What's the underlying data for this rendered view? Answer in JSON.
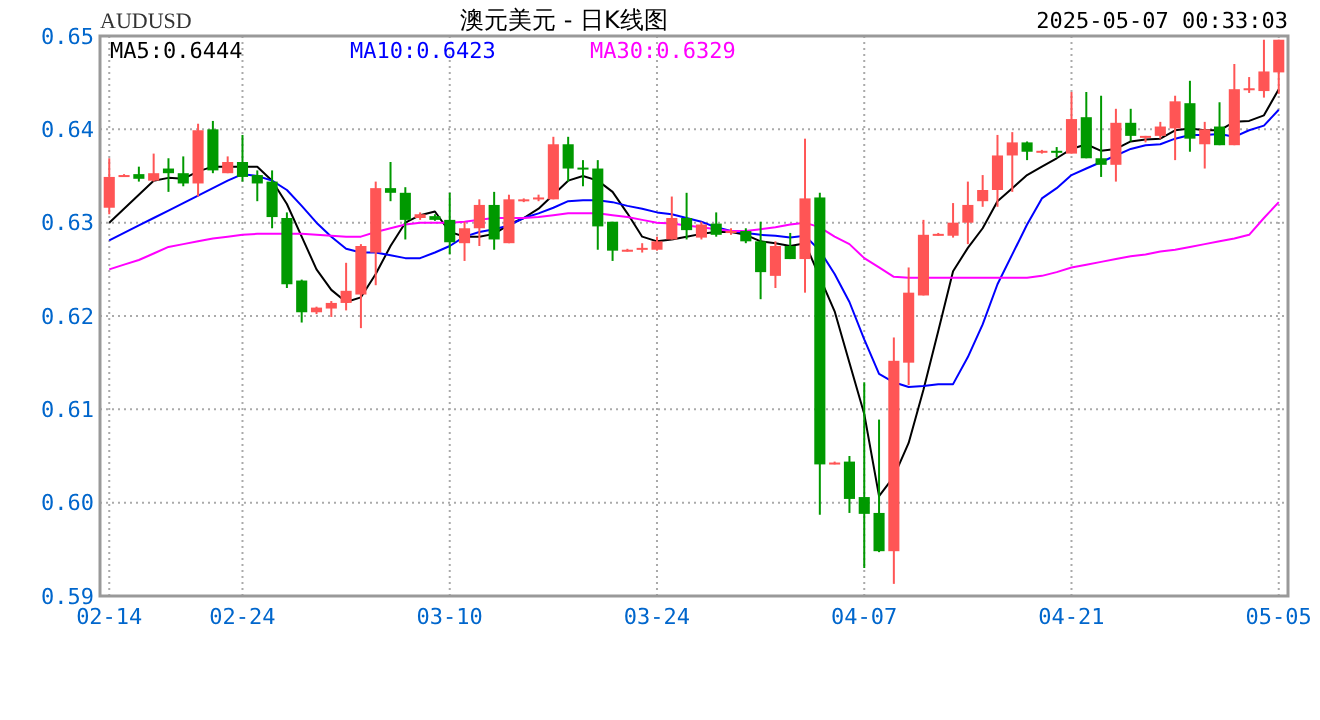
{
  "chart_data": {
    "type": "candlestick",
    "title": "澳元美元 - 日K线图",
    "ylabel": "AUDUSD",
    "annotations": [
      "2025-05-07 00:33:03"
    ],
    "categories": [
      "02-14",
      null,
      null,
      null,
      null,
      null,
      null,
      null,
      null,
      "02-24",
      null,
      null,
      null,
      null,
      null,
      null,
      null,
      null,
      null,
      null,
      null,
      null,
      null,
      "03-10",
      null,
      null,
      null,
      null,
      null,
      null,
      null,
      null,
      null,
      null,
      null,
      null,
      null,
      "03-24",
      null,
      null,
      null,
      null,
      null,
      null,
      null,
      null,
      null,
      null,
      null,
      null,
      null,
      "04-07",
      null,
      null,
      null,
      null,
      null,
      null,
      null,
      null,
      null,
      null,
      null,
      null,
      null,
      "04-21",
      null,
      null,
      null,
      null,
      null,
      null,
      null,
      null,
      null,
      null,
      null,
      null,
      null,
      "05-05"
    ],
    "ohlc": [
      [
        0.6316,
        0.6369,
        0.6309,
        0.6349
      ],
      [
        0.635,
        0.6352,
        0.6349,
        0.6351
      ],
      [
        0.6352,
        0.636,
        0.6344,
        0.6347
      ],
      [
        0.6345,
        0.6374,
        0.6344,
        0.6353
      ],
      [
        0.6358,
        0.6369,
        0.6333,
        0.6353
      ],
      [
        0.6353,
        0.6371,
        0.6339,
        0.6342
      ],
      [
        0.6342,
        0.6406,
        0.6328,
        0.6399
      ],
      [
        0.64,
        0.6409,
        0.6353,
        0.6356
      ],
      [
        0.6353,
        0.6371,
        0.6353,
        0.6365
      ],
      [
        0.6365,
        0.6394,
        0.6344,
        0.6349
      ],
      [
        0.6351,
        0.6356,
        0.6323,
        0.6342
      ],
      [
        0.6344,
        0.6356,
        0.6294,
        0.6306
      ],
      [
        0.6305,
        0.6311,
        0.623,
        0.6234
      ],
      [
        0.6238,
        0.6239,
        0.6193,
        0.6204
      ],
      [
        0.6204,
        0.621,
        0.6202,
        0.6209
      ],
      [
        0.6208,
        0.6216,
        0.6199,
        0.6214
      ],
      [
        0.6214,
        0.6257,
        0.6206,
        0.6227
      ],
      [
        0.6223,
        0.6277,
        0.6187,
        0.6275
      ],
      [
        0.6268,
        0.6344,
        0.6233,
        0.6337
      ],
      [
        0.6337,
        0.6365,
        0.6323,
        0.6332
      ],
      [
        0.6332,
        0.6338,
        0.6282,
        0.6303
      ],
      [
        0.6305,
        0.6311,
        0.6303,
        0.6309
      ],
      [
        0.6307,
        0.6309,
        0.6302,
        0.6303
      ],
      [
        0.6303,
        0.6332,
        0.6266,
        0.6279
      ],
      [
        0.6278,
        0.6301,
        0.6259,
        0.6294
      ],
      [
        0.6294,
        0.6325,
        0.6275,
        0.6319
      ],
      [
        0.6319,
        0.6333,
        0.6271,
        0.6282
      ],
      [
        0.6278,
        0.633,
        0.6278,
        0.6325
      ],
      [
        0.6324,
        0.6326,
        0.6322,
        0.6325
      ],
      [
        0.6325,
        0.633,
        0.6323,
        0.6327
      ],
      [
        0.6325,
        0.6392,
        0.6325,
        0.6384
      ],
      [
        0.6384,
        0.6392,
        0.6344,
        0.6358
      ],
      [
        0.6359,
        0.6367,
        0.6339,
        0.6357
      ],
      [
        0.6358,
        0.6367,
        0.6271,
        0.6296
      ],
      [
        0.6301,
        0.6301,
        0.6259,
        0.627
      ],
      [
        0.627,
        0.6272,
        0.6269,
        0.6271
      ],
      [
        0.6272,
        0.6278,
        0.6268,
        0.6273
      ],
      [
        0.6271,
        0.6285,
        0.627,
        0.628
      ],
      [
        0.6282,
        0.6328,
        0.6282,
        0.6305
      ],
      [
        0.6305,
        0.6332,
        0.6282,
        0.6292
      ],
      [
        0.6284,
        0.6301,
        0.6282,
        0.6298
      ],
      [
        0.6299,
        0.6311,
        0.6285,
        0.6287
      ],
      [
        0.629,
        0.6294,
        0.6287,
        0.6291
      ],
      [
        0.6291,
        0.6294,
        0.6278,
        0.628
      ],
      [
        0.628,
        0.6301,
        0.6218,
        0.6247
      ],
      [
        0.6243,
        0.628,
        0.623,
        0.6275
      ],
      [
        0.6275,
        0.6289,
        0.6261,
        0.6261
      ],
      [
        0.6261,
        0.639,
        0.6225,
        0.6326
      ],
      [
        0.6327,
        0.6332,
        0.5987,
        0.6041
      ],
      [
        0.6042,
        0.6044,
        0.6041,
        0.6043
      ],
      [
        0.6044,
        0.605,
        0.5989,
        0.6004
      ],
      [
        0.6006,
        0.6129,
        0.593,
        0.5988
      ],
      [
        0.5989,
        0.6089,
        0.5947,
        0.5948
      ],
      [
        0.5948,
        0.6177,
        0.5913,
        0.6152
      ],
      [
        0.615,
        0.6252,
        0.6126,
        0.6225
      ],
      [
        0.6222,
        0.6303,
        0.6222,
        0.6287
      ],
      [
        0.6287,
        0.6289,
        0.6286,
        0.6288
      ],
      [
        0.6286,
        0.6321,
        0.6284,
        0.63
      ],
      [
        0.63,
        0.6344,
        0.6277,
        0.6319
      ],
      [
        0.6323,
        0.6351,
        0.6317,
        0.6335
      ],
      [
        0.6335,
        0.6394,
        0.6317,
        0.6372
      ],
      [
        0.6372,
        0.6397,
        0.6333,
        0.6386
      ],
      [
        0.6386,
        0.6387,
        0.6367,
        0.6376
      ],
      [
        0.6376,
        0.6378,
        0.6374,
        0.6377
      ],
      [
        0.6377,
        0.6381,
        0.637,
        0.6375
      ],
      [
        0.6374,
        0.644,
        0.6374,
        0.6411
      ],
      [
        0.6413,
        0.644,
        0.6369,
        0.6369
      ],
      [
        0.6369,
        0.6436,
        0.6349,
        0.6362
      ],
      [
        0.6362,
        0.6422,
        0.6344,
        0.6407
      ],
      [
        0.6407,
        0.6422,
        0.6387,
        0.6393
      ],
      [
        0.6392,
        0.6393,
        0.6386,
        0.6393
      ],
      [
        0.6393,
        0.6408,
        0.639,
        0.6403
      ],
      [
        0.6401,
        0.6436,
        0.6367,
        0.643
      ],
      [
        0.6428,
        0.6452,
        0.6376,
        0.639
      ],
      [
        0.6384,
        0.6408,
        0.6358,
        0.64
      ],
      [
        0.6403,
        0.6429,
        0.6383,
        0.6383
      ],
      [
        0.6383,
        0.647,
        0.6383,
        0.6443
      ],
      [
        0.6443,
        0.6456,
        0.6439,
        0.6444
      ],
      [
        0.6441,
        0.6496,
        0.6434,
        0.6462
      ],
      [
        0.6461,
        0.6496,
        0.6438,
        0.6496
      ]
    ],
    "series": [
      {
        "type": "line",
        "name": "MA5:0.6444",
        "color": "#000000",
        "values": [
          0.63,
          0.6315,
          0.633,
          0.6345,
          0.6348,
          0.6347,
          0.6355,
          0.636,
          0.636,
          0.636,
          0.636,
          0.6345,
          0.632,
          0.6285,
          0.625,
          0.6228,
          0.6215,
          0.622,
          0.6245,
          0.6275,
          0.63,
          0.6308,
          0.6312,
          0.629,
          0.6285,
          0.6285,
          0.6288,
          0.6298,
          0.6305,
          0.6315,
          0.633,
          0.6345,
          0.635,
          0.6345,
          0.6333,
          0.631,
          0.6285,
          0.628,
          0.6282,
          0.6285,
          0.6288,
          0.629,
          0.629,
          0.6287,
          0.628,
          0.6278,
          0.6275,
          0.6278,
          null,
          0.6205,
          0.615,
          0.6095,
          0.6007,
          0.6028,
          0.6064,
          0.6121,
          0.6184,
          0.6248,
          0.6273,
          0.6294,
          0.6323,
          0.6337,
          0.6351,
          0.636,
          0.6369,
          0.6379,
          0.6384,
          0.6377,
          0.6379,
          0.6387,
          0.6389,
          0.639,
          0.6399,
          0.6401,
          0.6399,
          0.6399,
          0.6408,
          0.6409,
          0.6415,
          0.6443
        ]
      },
      {
        "type": "line",
        "name": "MA10:0.6423",
        "color": "#0000ff",
        "values": [
          0.6281,
          0.6289,
          0.6297,
          0.6305,
          0.6313,
          0.6321,
          0.6329,
          0.6337,
          0.6345,
          0.6352,
          0.635,
          0.6345,
          0.6335,
          0.6318,
          0.63,
          0.6285,
          0.6272,
          0.6268,
          0.6268,
          0.6265,
          0.6262,
          0.6262,
          0.6268,
          0.6275,
          0.6285,
          0.629,
          0.6293,
          0.6297,
          0.6305,
          0.631,
          0.6316,
          0.6323,
          0.6324,
          0.6324,
          0.6322,
          0.6318,
          0.6315,
          0.6311,
          0.6309,
          0.6305,
          0.6301,
          0.6295,
          0.6291,
          0.6289,
          0.6287,
          0.6286,
          0.6284,
          0.6286,
          0.627,
          0.6245,
          0.6215,
          0.6175,
          0.6138,
          0.6129,
          0.6124,
          0.6125,
          0.6127,
          0.6127,
          0.6156,
          0.6191,
          0.6234,
          0.6266,
          0.6298,
          0.6326,
          0.6337,
          0.6351,
          0.6358,
          0.6365,
          0.6372,
          0.6379,
          0.6383,
          0.6384,
          0.639,
          0.6394,
          0.6394,
          0.6395,
          0.6392,
          0.6399,
          0.6404,
          0.6421
        ]
      },
      {
        "type": "line",
        "name": "MA30:0.6329",
        "color": "#ff00ff",
        "values": [
          0.625,
          0.6255,
          0.626,
          0.6267,
          0.6274,
          0.6277,
          0.628,
          0.6283,
          0.6285,
          0.6287,
          0.6288,
          0.6288,
          0.6288,
          0.6288,
          0.6287,
          0.6286,
          0.6285,
          0.6285,
          0.629,
          0.6294,
          0.6298,
          0.63,
          0.63,
          0.63,
          0.6301,
          0.6303,
          0.6305,
          0.6305,
          0.6305,
          0.6306,
          0.6308,
          0.631,
          0.631,
          0.631,
          0.6308,
          0.6306,
          0.6303,
          0.63,
          0.6299,
          0.6297,
          0.6295,
          0.6293,
          0.6291,
          0.6291,
          0.6293,
          0.6295,
          0.6298,
          0.63,
          0.6295,
          0.6285,
          0.6277,
          0.6262,
          0.6252,
          0.6242,
          0.6241,
          0.6241,
          0.6241,
          0.6241,
          0.6241,
          0.6241,
          0.6241,
          0.6241,
          0.6241,
          0.6243,
          0.6247,
          0.6252,
          0.6255,
          0.6258,
          0.6261,
          0.6264,
          0.6266,
          0.6269,
          0.6271,
          0.6274,
          0.6277,
          0.628,
          0.6283,
          0.6287,
          0.6305,
          0.6322
        ]
      }
    ],
    "ylim": [
      0.59,
      0.65
    ],
    "yticks": [
      0.59,
      {
        "value": 0.6,
        "label": "0.60"
      },
      0.61,
      0.62,
      0.63,
      0.64,
      0.65
    ],
    "grid": true,
    "legend": "top left"
  }
}
